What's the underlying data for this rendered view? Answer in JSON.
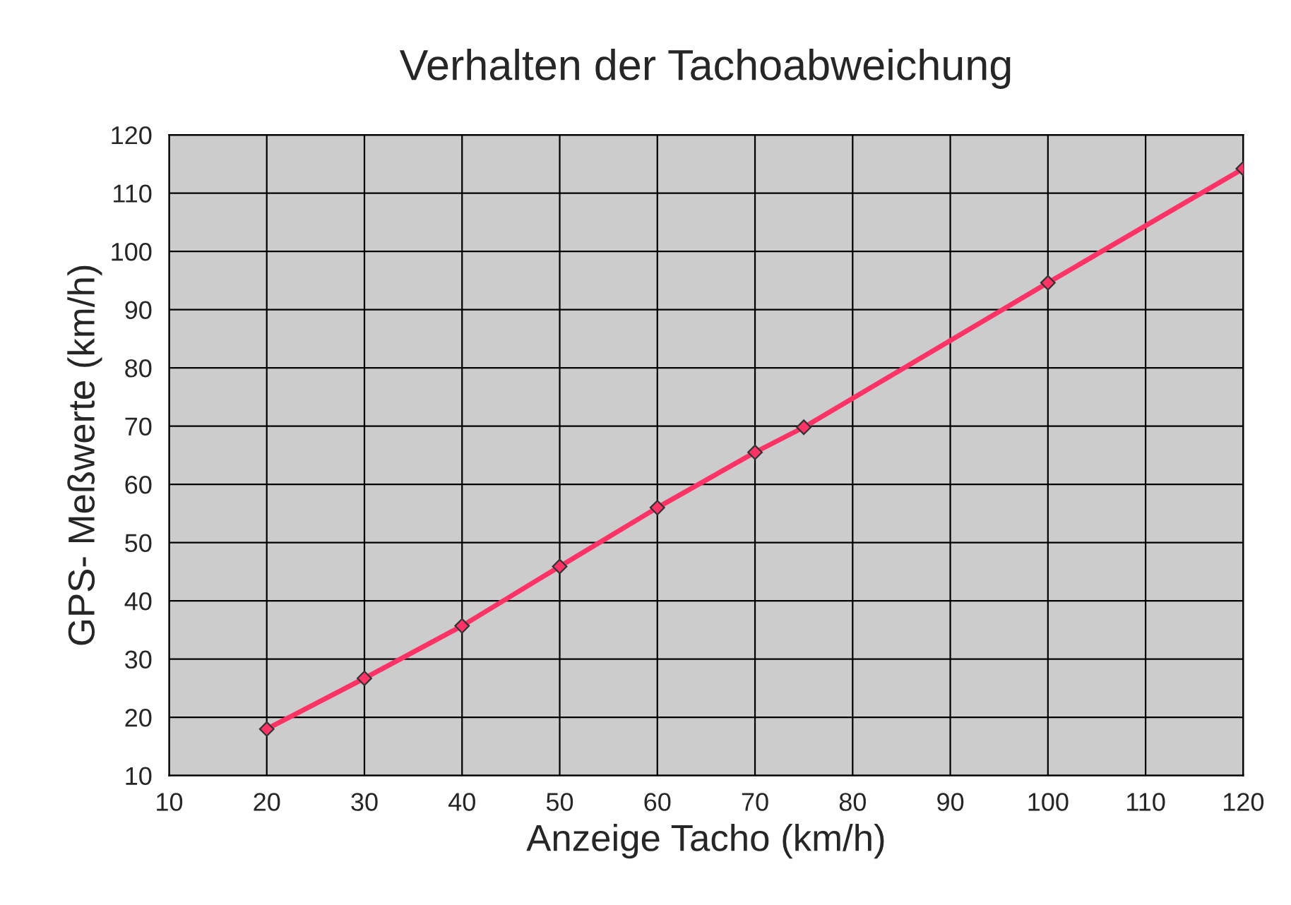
{
  "chart_data": {
    "type": "line",
    "title": "Verhalten der Tachoabweichung",
    "xlabel": "Anzeige Tacho (km/h)",
    "ylabel": "GPS- Meßwerte (km/h)",
    "series": [
      {
        "color": "#ff3366",
        "x": [
          20,
          30,
          40,
          50,
          60,
          70,
          75,
          100,
          120
        ],
        "values": [
          18.0,
          26.7,
          35.7,
          45.9,
          56.0,
          65.5,
          69.8,
          94.6,
          114.2
        ]
      }
    ],
    "marker": "diamond",
    "line_style": "solid",
    "grid": true,
    "xlim": [
      10,
      120
    ],
    "xticks": [
      10,
      20,
      30,
      40,
      50,
      60,
      70,
      80,
      90,
      100,
      110,
      120
    ],
    "ylim": [
      10,
      120
    ],
    "yticks": [
      10,
      20,
      30,
      40,
      50,
      60,
      70,
      80,
      90,
      100,
      110,
      120
    ]
  }
}
